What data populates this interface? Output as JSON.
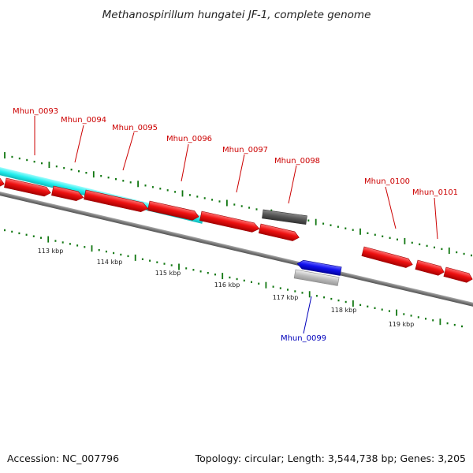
{
  "title": "Methanospirillum hungatei JF-1, complete genome",
  "footer": {
    "accession": "Accession: NC_007796",
    "summary": "Topology: circular; Length: 3,544,738 bp; Genes: 3,205"
  },
  "scale_labels": [
    "113 kbp",
    "114 kbp",
    "115 kbp",
    "116 kbp",
    "117 kbp",
    "118 kbp",
    "119 kbp"
  ],
  "gene_labels": [
    {
      "id": "Mhun_0093",
      "strand": "forward"
    },
    {
      "id": "Mhun_0094",
      "strand": "forward"
    },
    {
      "id": "Mhun_0095",
      "strand": "forward"
    },
    {
      "id": "Mhun_0096",
      "strand": "forward"
    },
    {
      "id": "Mhun_0097",
      "strand": "forward"
    },
    {
      "id": "Mhun_0098",
      "strand": "forward"
    },
    {
      "id": "Mhun_0099",
      "strand": "reverse"
    },
    {
      "id": "Mhun_0100",
      "strand": "forward"
    },
    {
      "id": "Mhun_0101",
      "strand": "forward"
    }
  ],
  "colors": {
    "forward_cds": "#ee1111",
    "reverse_cds": "#1111ee",
    "forward_label": "#cc0000",
    "reverse_label": "#0000bb",
    "feature_highlight": "#22eeee",
    "other_feature": "#555555",
    "other_feature_reverse": "#bbbbbb",
    "backbone": "#777777",
    "ticks": "#117711"
  }
}
